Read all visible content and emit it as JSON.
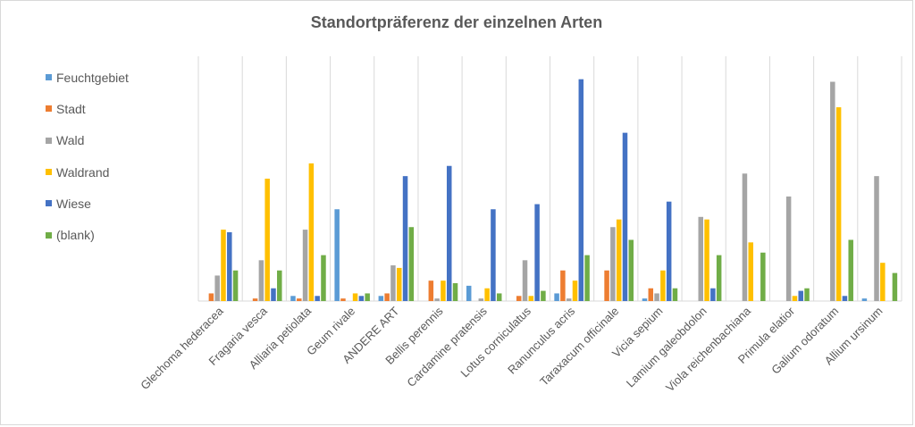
{
  "chart_data": {
    "type": "bar",
    "title": "Standortpräferenz der einzelnen Arten",
    "xlabel": "",
    "ylabel": "",
    "legend_position": "left",
    "grid": "vertical category separators",
    "categories": [
      "Glechoma hederacea",
      "Fragaria vesca",
      "Alliaria petiolata",
      "Geum rivale",
      "ANDERE ART",
      "Bellis perennis",
      "Cardamine pratensis",
      "Lotus corniculatus",
      "Ranunculus acris",
      "Taraxacum officinale",
      "Vicia sepium",
      "Lamium galeobdolon",
      "Viola reichenbachiana",
      "Primula elatior",
      "Galium odoratum",
      "Allium ursinum"
    ],
    "ylim": [
      0,
      48
    ],
    "series": [
      {
        "name": "Feuchtgebiet",
        "color": "#5b9bd5",
        "values": [
          0,
          0,
          1,
          18,
          1,
          0,
          3,
          0,
          1.5,
          0,
          0.5,
          0,
          0,
          0,
          0,
          0.5
        ]
      },
      {
        "name": "Stadt",
        "color": "#ed7d31",
        "values": [
          1.5,
          0.5,
          0.5,
          0.5,
          1.5,
          4,
          0,
          1,
          6,
          6,
          2.5,
          0,
          0,
          0,
          0,
          0
        ]
      },
      {
        "name": "Wald",
        "color": "#a5a5a5",
        "values": [
          5,
          8,
          14,
          0,
          7,
          0.5,
          0.5,
          8,
          0.5,
          14.5,
          1.5,
          16.5,
          25,
          20.5,
          43,
          24.5
        ]
      },
      {
        "name": "Waldrand",
        "color": "#ffc000",
        "values": [
          14,
          24,
          27,
          1.5,
          6.5,
          4,
          2.5,
          1,
          4,
          16,
          6,
          16,
          11.5,
          1,
          38,
          7.5
        ]
      },
      {
        "name": "Wiese",
        "color": "#4472c4",
        "values": [
          13.5,
          2.5,
          1,
          1,
          24.5,
          26.5,
          18,
          19,
          43.5,
          33,
          19.5,
          2.5,
          0,
          2,
          1,
          0
        ]
      },
      {
        "name": "(blank)",
        "color": "#70ad47",
        "values": [
          6,
          6,
          9,
          1.5,
          14.5,
          3.5,
          1.5,
          2,
          9,
          12,
          2.5,
          9,
          9.5,
          2.5,
          12,
          5.5
        ]
      }
    ]
  }
}
